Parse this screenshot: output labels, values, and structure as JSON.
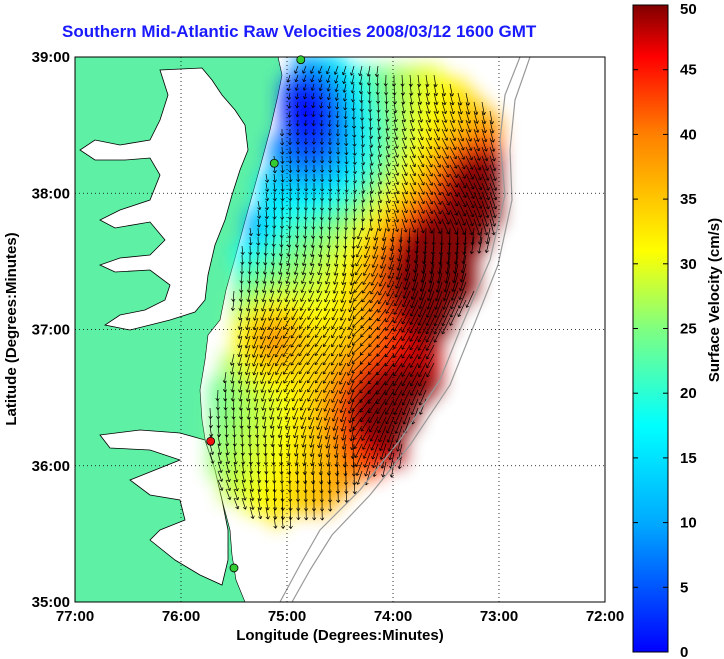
{
  "title": "Southern Mid-Atlantic Raw Velocities 2008/03/12 1600 GMT",
  "xlabel": "Longitude (Degrees:Minutes)",
  "ylabel": "Latitude (Degrees:Minutes)",
  "colorbar_label": "Surface Velocity (cm/s)",
  "x_ticks": [
    "77:00",
    "76:00",
    "75:00",
    "74:00",
    "73:00",
    "72:00"
  ],
  "y_ticks": [
    "39:00",
    "38:00",
    "37:00",
    "36:00",
    "35:00"
  ],
  "colorbar_ticks": [
    "0",
    "5",
    "10",
    "15",
    "20",
    "25",
    "30",
    "35",
    "40",
    "45",
    "50"
  ],
  "colors": {
    "land": "#5ef0a5",
    "water": "#ffffff",
    "title": "#1a1aff",
    "station_green": "#33cc33",
    "station_red": "#ee1111"
  },
  "chart_data": {
    "type": "heatmap",
    "x_range_deg": [
      -77,
      -72
    ],
    "y_range_deg": [
      35,
      39
    ],
    "colorbar_range": [
      0,
      50
    ],
    "colormap": "jet",
    "grid": "dotted",
    "stations": [
      {
        "lon": -74.87,
        "lat": 38.98,
        "status": "green"
      },
      {
        "lon": -75.12,
        "lat": 38.22,
        "status": "green"
      },
      {
        "lon": -75.72,
        "lat": 36.18,
        "status": "red"
      },
      {
        "lon": -75.5,
        "lat": 35.25,
        "status": "green"
      }
    ]
  }
}
